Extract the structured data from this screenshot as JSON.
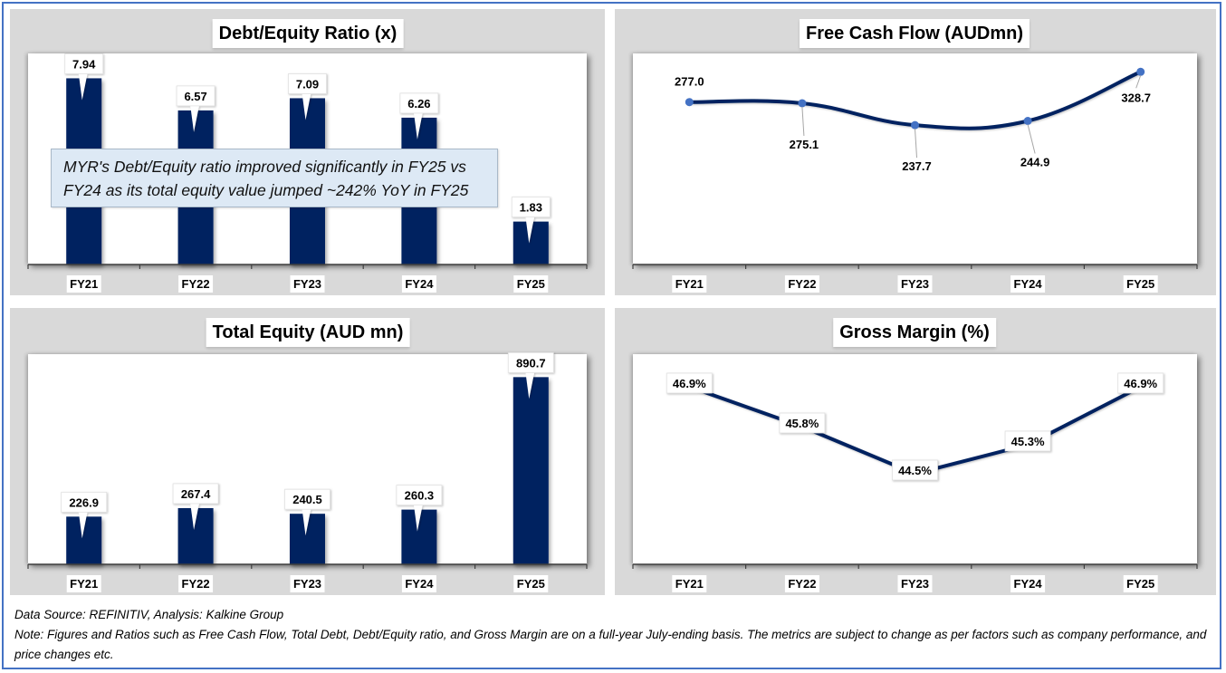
{
  "colors": {
    "bar": "#002060",
    "line": "#002060",
    "marker": "#4472c4",
    "panel_bg": "#d9d9d9",
    "frame": "#4472c4",
    "annotation_bg": "#dde9f5"
  },
  "chart_data": [
    {
      "id": "debt-equity",
      "type": "bar",
      "title": "Debt/Equity Ratio (x)",
      "categories": [
        "FY21",
        "FY22",
        "FY23",
        "FY24",
        "FY25"
      ],
      "values": [
        7.94,
        6.57,
        7.09,
        6.26,
        1.83
      ],
      "labels": [
        "7.94",
        "6.57",
        "7.09",
        "6.26",
        "1.83"
      ],
      "xlabel": "",
      "ylabel": "",
      "ylim": [
        0,
        9.0
      ],
      "grid": false,
      "legend": "none",
      "annotation": "MYR's Debt/Equity ratio improved significantly in FY25 vs FY24 as its total equity value jumped ~242% YoY in FY25"
    },
    {
      "id": "free-cash-flow",
      "type": "line",
      "title": "Free Cash Flow (AUDmn)",
      "categories": [
        "FY21",
        "FY22",
        "FY23",
        "FY24",
        "FY25"
      ],
      "values": [
        277.0,
        275.1,
        237.7,
        244.9,
        328.7
      ],
      "labels": [
        "277.0",
        "275.1",
        "237.7",
        "244.9",
        "328.7"
      ],
      "xlabel": "",
      "ylabel": "",
      "ylim": [
        0,
        360
      ],
      "smooth": true,
      "grid": false,
      "legend": "none"
    },
    {
      "id": "total-equity",
      "type": "bar",
      "title": "Total Equity (AUD mn)",
      "categories": [
        "FY21",
        "FY22",
        "FY23",
        "FY24",
        "FY25"
      ],
      "values": [
        226.9,
        267.4,
        240.5,
        260.3,
        890.7
      ],
      "labels": [
        "226.9",
        "267.4",
        "240.5",
        "260.3",
        "890.7"
      ],
      "xlabel": "",
      "ylabel": "",
      "ylim": [
        0,
        1000
      ],
      "grid": false,
      "legend": "none"
    },
    {
      "id": "gross-margin",
      "type": "line",
      "title": "Gross Margin (%)",
      "categories": [
        "FY21",
        "FY22",
        "FY23",
        "FY24",
        "FY25"
      ],
      "values": [
        46.9,
        45.8,
        44.5,
        45.3,
        46.9
      ],
      "labels": [
        "46.9%",
        "45.8%",
        "44.5%",
        "45.3%",
        "46.9%"
      ],
      "xlabel": "",
      "ylabel": "",
      "ylim": [
        42.0,
        47.8
      ],
      "smooth": false,
      "grid": false,
      "legend": "none"
    }
  ],
  "footer": {
    "source": "Data Source: REFINITIV, Analysis: Kalkine Group",
    "note": "Note: Figures and Ratios such as Free Cash Flow, Total Debt, Debt/Equity ratio, and Gross Margin are on a full-year July-ending basis. The metrics are subject to change as per factors such as company performance, and price changes etc."
  }
}
